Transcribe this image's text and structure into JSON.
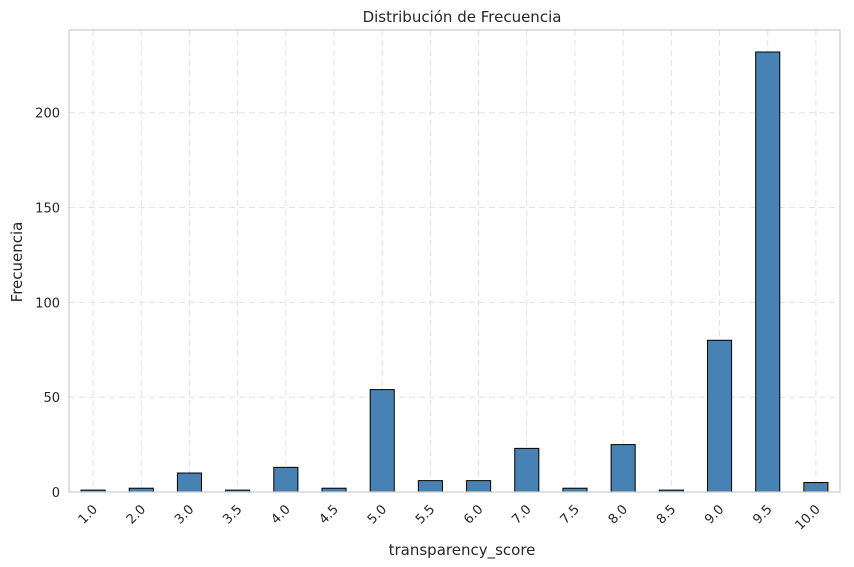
{
  "chart_data": {
    "type": "bar",
    "title": "Distribución de Frecuencia",
    "xlabel": "transparency_score",
    "ylabel": "Frecuencia",
    "categories": [
      "1.0",
      "2.0",
      "3.0",
      "3.5",
      "4.0",
      "4.5",
      "5.0",
      "5.5",
      "6.0",
      "7.0",
      "7.5",
      "8.0",
      "8.5",
      "9.0",
      "9.5",
      "10.0"
    ],
    "values": [
      1,
      2,
      10,
      1,
      13,
      2,
      54,
      6,
      6,
      23,
      2,
      25,
      1,
      80,
      232,
      5
    ],
    "ylim": [
      0,
      243.6
    ],
    "yticks": [
      0,
      50,
      100,
      150,
      200
    ],
    "grid": true,
    "bar_color": "#4682b4",
    "edge_color": "#000000",
    "grid_color": "#e2e2e2"
  }
}
